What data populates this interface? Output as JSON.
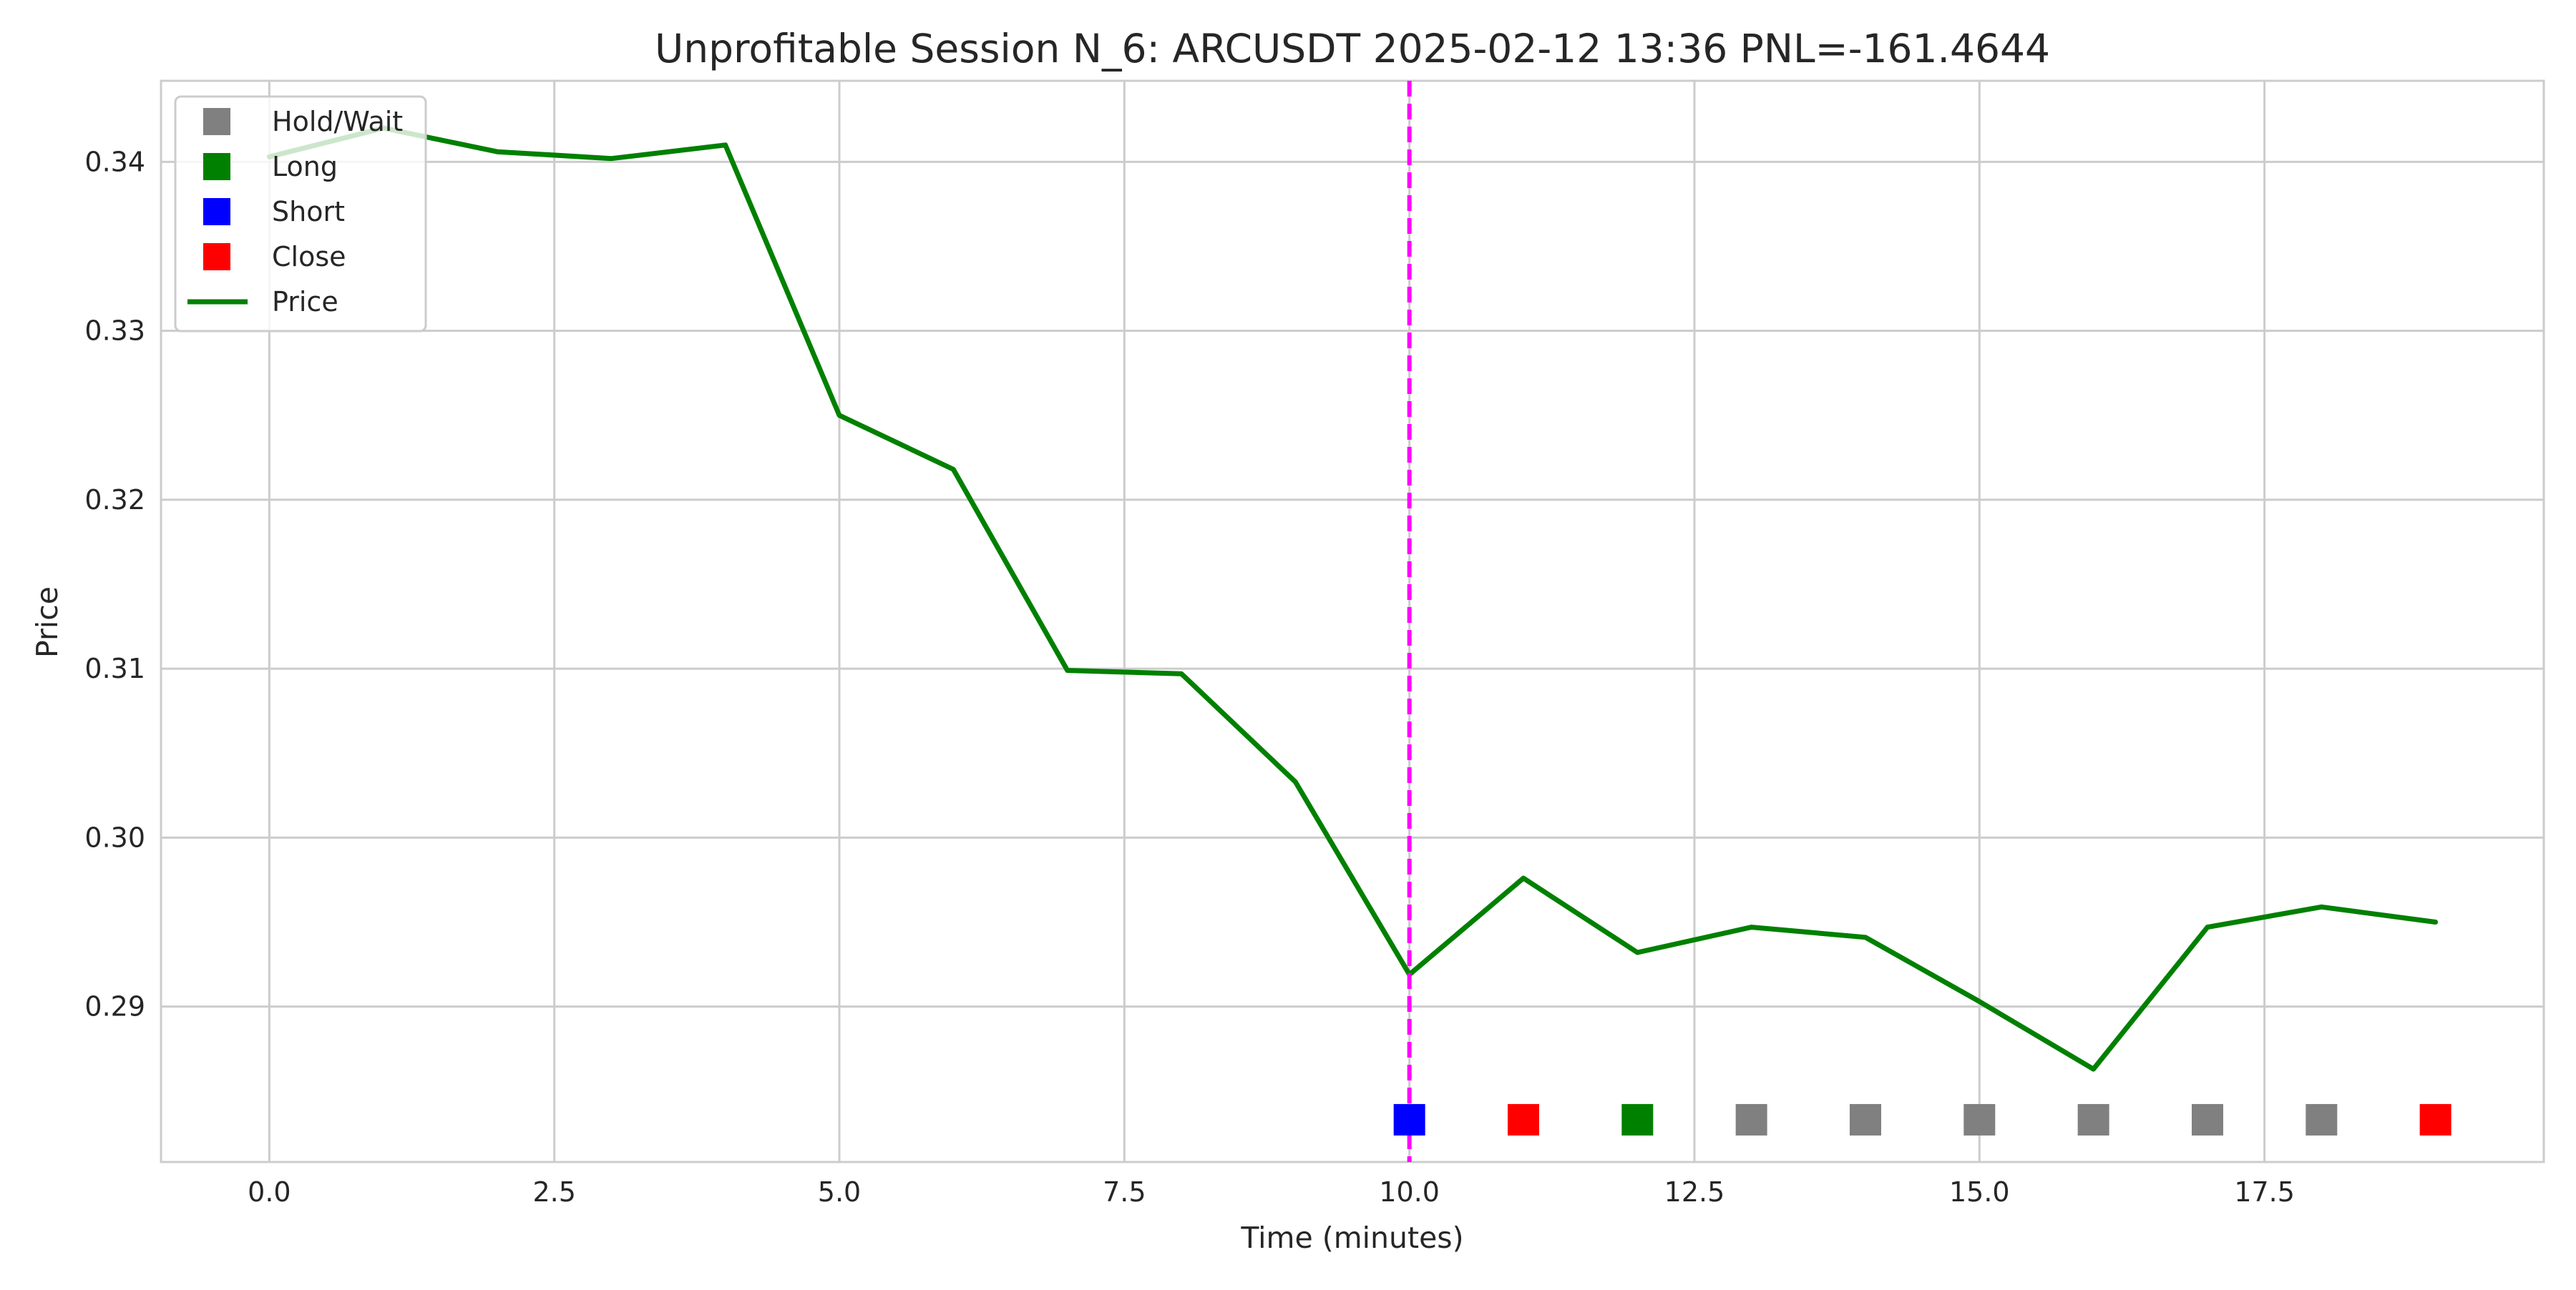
{
  "chart_data": {
    "type": "line",
    "title": "Unprofitable Session N_6: ARCUSDT 2025-02-12 13:36  PNL=-161.4644",
    "xlabel": "Time (minutes)",
    "ylabel": "Price",
    "xlim": [
      -0.95,
      19.95
    ],
    "ylim": [
      0.2808,
      0.3448
    ],
    "xticks": [
      0,
      2.5,
      5,
      7.5,
      10,
      12.5,
      15,
      17.5
    ],
    "xtick_labels": [
      "0.0",
      "2.5",
      "5.0",
      "7.5",
      "10.0",
      "12.5",
      "15.0",
      "17.5"
    ],
    "yticks": [
      0.29,
      0.3,
      0.31,
      0.32,
      0.33,
      0.34
    ],
    "ytick_labels": [
      "0.29",
      "0.30",
      "0.31",
      "0.32",
      "0.33",
      "0.34"
    ],
    "grid": true,
    "legend_position": "upper-left",
    "legend": [
      {
        "label": "Hold/Wait",
        "kind": "square",
        "color": "#808080"
      },
      {
        "label": "Long",
        "kind": "square",
        "color": "#008000"
      },
      {
        "label": "Short",
        "kind": "square",
        "color": "#0000ff"
      },
      {
        "label": "Close",
        "kind": "square",
        "color": "#ff0000"
      },
      {
        "label": "Price",
        "kind": "line",
        "color": "#008000"
      }
    ],
    "series": [
      {
        "name": "Price",
        "color": "#008000",
        "x": [
          0,
          1,
          2,
          3,
          4,
          5,
          6,
          7,
          8,
          9,
          10,
          11,
          12,
          13,
          14,
          15,
          16,
          17,
          18,
          19
        ],
        "values": [
          0.3403,
          0.342,
          0.3406,
          0.3402,
          0.341,
          0.325,
          0.3218,
          0.3099,
          0.3097,
          0.3033,
          0.2919,
          0.2976,
          0.2932,
          0.2947,
          0.2941,
          0.2903,
          0.2863,
          0.2947,
          0.2959,
          0.295
        ]
      }
    ],
    "actions": {
      "y": 0.2833,
      "points": [
        {
          "x": 10,
          "action": "Short",
          "color": "#0000ff"
        },
        {
          "x": 11,
          "action": "Close",
          "color": "#ff0000"
        },
        {
          "x": 12,
          "action": "Long",
          "color": "#008000"
        },
        {
          "x": 13,
          "action": "Hold/Wait",
          "color": "#808080"
        },
        {
          "x": 14,
          "action": "Hold/Wait",
          "color": "#808080"
        },
        {
          "x": 15,
          "action": "Hold/Wait",
          "color": "#808080"
        },
        {
          "x": 16,
          "action": "Hold/Wait",
          "color": "#808080"
        },
        {
          "x": 17,
          "action": "Hold/Wait",
          "color": "#808080"
        },
        {
          "x": 18,
          "action": "Hold/Wait",
          "color": "#808080"
        },
        {
          "x": 19,
          "action": "Close",
          "color": "#ff0000"
        }
      ]
    },
    "vertical_line": {
      "x": 10,
      "color": "#ff00ff",
      "style": "dashed"
    }
  }
}
